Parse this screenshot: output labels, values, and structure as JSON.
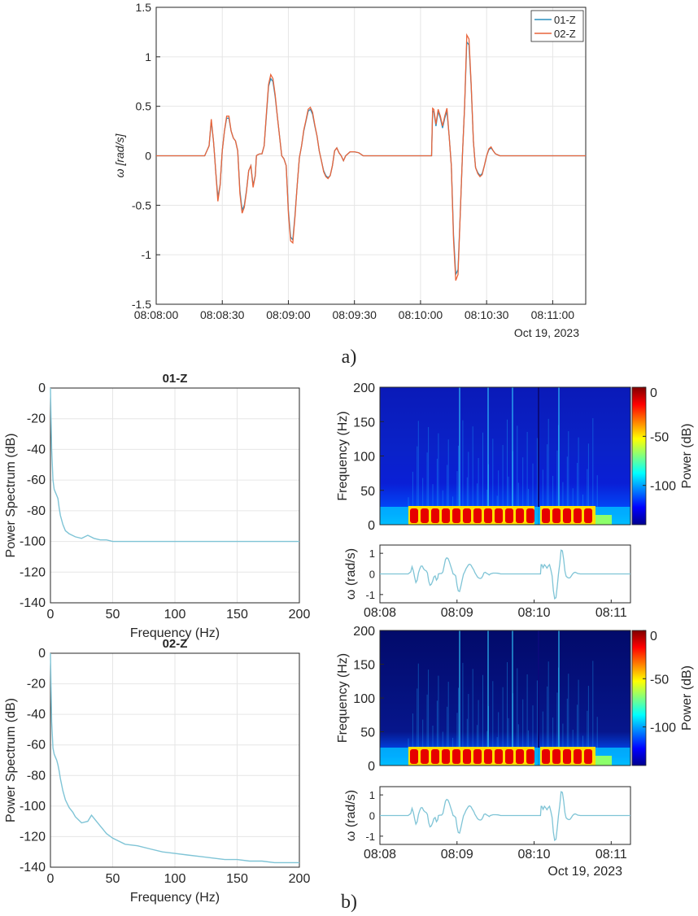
{
  "panel_labels": {
    "a": "a)",
    "b": "b)"
  },
  "colors": {
    "series1": "#2a8fbd",
    "series2": "#e9643a",
    "spectrum": "#7fc4d6",
    "axis": "#262626",
    "grid": "#e6e6e6"
  },
  "chart_data": [
    {
      "id": "a",
      "type": "line",
      "title": "",
      "xlabel": "",
      "ylabel": "ω [rad/s]",
      "x_range_sec": [
        0,
        195
      ],
      "x_tick_seconds": [
        0,
        30,
        60,
        90,
        120,
        150,
        180
      ],
      "x_tick_labels": [
        "08:08:00",
        "08:08:30",
        "08:09:00",
        "08:09:30",
        "08:10:00",
        "08:10:30",
        "08:11:00"
      ],
      "date_label": "Oct 19, 2023",
      "ylim": [
        -1.5,
        1.5
      ],
      "y_ticks": [
        -1.5,
        -1,
        -0.5,
        0,
        0.5,
        1,
        1.5
      ],
      "y_tick_labels": [
        "-1.5",
        "-1",
        "-0.5",
        "0",
        "0.5",
        "1",
        "1.5"
      ],
      "grid": true,
      "legend_position": "top-right",
      "x": [
        0,
        22,
        24,
        25,
        26,
        26.5,
        27,
        28,
        29,
        30,
        31,
        32,
        33,
        34,
        35,
        36,
        37,
        38,
        39,
        40,
        41,
        42,
        43,
        44,
        45,
        45.5,
        46,
        47,
        48,
        49,
        50,
        51,
        52,
        53,
        54,
        55,
        56,
        57,
        58,
        59,
        60,
        61,
        62,
        63,
        64,
        65,
        66,
        67,
        68,
        69,
        70,
        71,
        72,
        73,
        74,
        75,
        76,
        77,
        78,
        79,
        80,
        81,
        82,
        83,
        84,
        85,
        86,
        87,
        88,
        89,
        90,
        92,
        94,
        96,
        97,
        98,
        99,
        100,
        101,
        102,
        104,
        106,
        108,
        112,
        125,
        125.5,
        126,
        127,
        128,
        129,
        130,
        131,
        132,
        133,
        134,
        135,
        136,
        137,
        138,
        139,
        140,
        141,
        142,
        143,
        144,
        144.5,
        145,
        146,
        147,
        148,
        149,
        150,
        151,
        152,
        153,
        154,
        156,
        158,
        160,
        162,
        164,
        166,
        168,
        170,
        195
      ],
      "series": [
        {
          "name": "01-Z",
          "values": [
            0,
            0,
            0.1,
            0.35,
            0.15,
            0,
            -0.15,
            -0.42,
            -0.3,
            0.05,
            0.25,
            0.38,
            0.38,
            0.25,
            0.18,
            0.15,
            0.05,
            -0.35,
            -0.55,
            -0.5,
            -0.35,
            -0.15,
            -0.1,
            -0.3,
            -0.2,
            0,
            0.01,
            0.02,
            0.02,
            0.1,
            0.4,
            0.7,
            0.78,
            0.75,
            0.6,
            0.4,
            0.2,
            0,
            -0.03,
            -0.1,
            -0.55,
            -0.82,
            -0.85,
            -0.6,
            -0.3,
            -0.02,
            0.1,
            0.25,
            0.35,
            0.45,
            0.47,
            0.42,
            0.3,
            0.2,
            0.05,
            -0.05,
            -0.15,
            -0.2,
            -0.22,
            -0.2,
            -0.1,
            0.05,
            0.08,
            0.03,
            0,
            -0.05,
            0,
            0.02,
            0.04,
            0.04,
            0.04,
            0.03,
            0,
            0,
            0,
            0,
            0,
            0,
            0,
            0,
            0,
            0,
            0,
            0,
            0,
            0.45,
            0.45,
            0.3,
            0.45,
            0.38,
            0.28,
            0.38,
            0.45,
            0.2,
            -0.1,
            -0.8,
            -1.2,
            -1.15,
            -0.6,
            0,
            0.5,
            1.15,
            1.12,
            0.7,
            0.15,
            0,
            -0.12,
            -0.17,
            -0.2,
            -0.18,
            -0.1,
            0,
            0.06,
            0.08,
            0.05,
            0.02,
            0,
            0,
            0,
            0,
            0,
            0,
            0,
            0,
            0
          ]
        },
        {
          "name": "02-Z",
          "values": [
            0,
            0,
            0.1,
            0.37,
            0.15,
            0,
            -0.15,
            -0.46,
            -0.3,
            0.05,
            0.25,
            0.4,
            0.4,
            0.25,
            0.18,
            0.15,
            0.05,
            -0.38,
            -0.58,
            -0.52,
            -0.36,
            -0.15,
            -0.1,
            -0.32,
            -0.2,
            0,
            0.01,
            0.02,
            0.02,
            0.1,
            0.42,
            0.72,
            0.82,
            0.78,
            0.62,
            0.4,
            0.2,
            0,
            -0.03,
            -0.1,
            -0.58,
            -0.86,
            -0.88,
            -0.62,
            -0.3,
            -0.02,
            0.1,
            0.26,
            0.36,
            0.47,
            0.49,
            0.44,
            0.31,
            0.2,
            0.05,
            -0.05,
            -0.16,
            -0.21,
            -0.23,
            -0.2,
            -0.1,
            0.05,
            0.08,
            0.03,
            0,
            -0.05,
            0,
            0.02,
            0.04,
            0.04,
            0.04,
            0.03,
            0,
            0,
            0,
            0,
            0,
            0,
            0,
            0,
            0,
            0,
            0,
            0,
            0,
            0.48,
            0.47,
            0.32,
            0.47,
            0.4,
            0.3,
            0.4,
            0.48,
            0.2,
            -0.1,
            -0.85,
            -1.26,
            -1.2,
            -0.6,
            0,
            0.5,
            1.22,
            1.18,
            0.72,
            0.15,
            0,
            -0.12,
            -0.18,
            -0.21,
            -0.19,
            -0.1,
            0,
            0.07,
            0.09,
            0.05,
            0.02,
            0,
            0,
            0,
            0,
            0,
            0,
            0,
            0,
            0
          ]
        }
      ]
    },
    {
      "id": "b-psd-01",
      "type": "line",
      "title": "01-Z",
      "xlabel": "Frequency (Hz)",
      "ylabel": "Power Spectrum (dB)",
      "xlim": [
        0,
        200
      ],
      "ylim": [
        -140,
        0
      ],
      "x_ticks": [
        0,
        50,
        100,
        150,
        200
      ],
      "y_ticks": [
        -140,
        -120,
        -100,
        -80,
        -60,
        -40,
        -20,
        0
      ],
      "grid": true,
      "x": [
        0,
        1,
        2,
        3,
        4,
        5,
        6,
        7,
        8,
        10,
        12,
        15,
        20,
        25,
        30,
        35,
        40,
        45,
        50,
        60,
        80,
        100,
        120,
        150,
        180,
        200
      ],
      "values": [
        0,
        -40,
        -60,
        -66,
        -68,
        -70,
        -72,
        -78,
        -83,
        -89,
        -93,
        -95,
        -97,
        -98,
        -96,
        -98,
        -99,
        -99,
        -100,
        -100,
        -100,
        -100,
        -100,
        -100,
        -100,
        -100
      ]
    },
    {
      "id": "b-psd-02",
      "type": "line",
      "title": "02-Z",
      "xlabel": "Frequency (Hz)",
      "ylabel": "Power Spectrum (dB)",
      "xlim": [
        0,
        200
      ],
      "ylim": [
        -140,
        0
      ],
      "x_ticks": [
        0,
        50,
        100,
        150,
        200
      ],
      "y_ticks": [
        -140,
        -120,
        -100,
        -80,
        -60,
        -40,
        -20,
        0
      ],
      "grid": true,
      "x": [
        0,
        1,
        2,
        3,
        4,
        5,
        6,
        7,
        8,
        10,
        12,
        15,
        18,
        20,
        25,
        30,
        33,
        36,
        40,
        45,
        50,
        60,
        70,
        80,
        90,
        100,
        110,
        120,
        130,
        140,
        150,
        160,
        170,
        180,
        190,
        200
      ],
      "values": [
        0,
        -45,
        -62,
        -66,
        -68,
        -70,
        -73,
        -77,
        -82,
        -90,
        -96,
        -101,
        -104,
        -107,
        -111,
        -110,
        -106,
        -109,
        -113,
        -118,
        -121,
        -125,
        -126,
        -128,
        -130,
        -131,
        -132,
        -133,
        -134,
        -135,
        -135,
        -136,
        -136,
        -137,
        -137,
        -137
      ]
    },
    {
      "id": "b-spec-01",
      "type": "heatmap",
      "ylabel": "Frequency (Hz)",
      "ylim": [
        0,
        200
      ],
      "y_ticks": [
        0,
        50,
        100,
        150,
        200
      ],
      "colorbar_label": "Power (dB)",
      "colorbar_ticks": [
        0,
        -50,
        -100
      ]
    },
    {
      "id": "b-omega-01",
      "type": "line",
      "ylabel": "ω (rad/s)",
      "y_ticks": [
        -1,
        0,
        1
      ],
      "x_tick_labels": [
        "08:08",
        "08:09",
        "08:10",
        "08:11"
      ]
    },
    {
      "id": "b-spec-02",
      "type": "heatmap",
      "ylabel": "Frequency (Hz)",
      "ylim": [
        0,
        200
      ],
      "y_ticks": [
        0,
        50,
        100,
        150,
        200
      ],
      "colorbar_label": "Power (dB)",
      "colorbar_ticks": [
        0,
        -50,
        -100
      ]
    },
    {
      "id": "b-omega-02",
      "type": "line",
      "ylabel": "ω (rad/s)",
      "y_ticks": [
        -1,
        0,
        1
      ],
      "x_tick_labels": [
        "08:08",
        "08:09",
        "08:10",
        "08:11"
      ],
      "date_label": "Oct 19, 2023"
    }
  ]
}
